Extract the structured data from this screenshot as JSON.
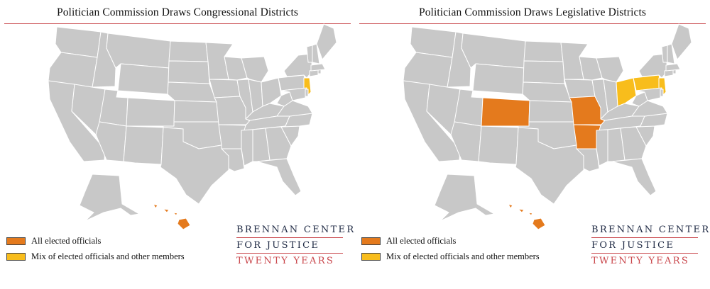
{
  "colors": {
    "all_elected": "#e47a1d",
    "mixed": "#f8bd1c",
    "base_state": "#c8c8c8",
    "state_border": "#ffffff",
    "rule": "#c9464b",
    "logo_navy": "#1f2a44",
    "logo_red": "#c9464b"
  },
  "legend": {
    "all_elected_label": "All elected officials",
    "mixed_label": "Mix of elected officials and other members"
  },
  "logo": {
    "line1": "BRENNAN CENTER",
    "line2": "FOR JUSTICE",
    "line3": "TWENTY YEARS"
  },
  "maps": [
    {
      "title": "Politician Commission Draws Congressional Districts",
      "all_elected_states": [
        "Hawaii"
      ],
      "mixed_states": [
        "New Jersey"
      ]
    },
    {
      "title": "Politician Commission Draws Legislative Districts",
      "all_elected_states": [
        "Colorado",
        "Missouri",
        "Arkansas",
        "Hawaii"
      ],
      "mixed_states": [
        "Ohio",
        "Pennsylvania",
        "New Jersey"
      ]
    }
  ]
}
